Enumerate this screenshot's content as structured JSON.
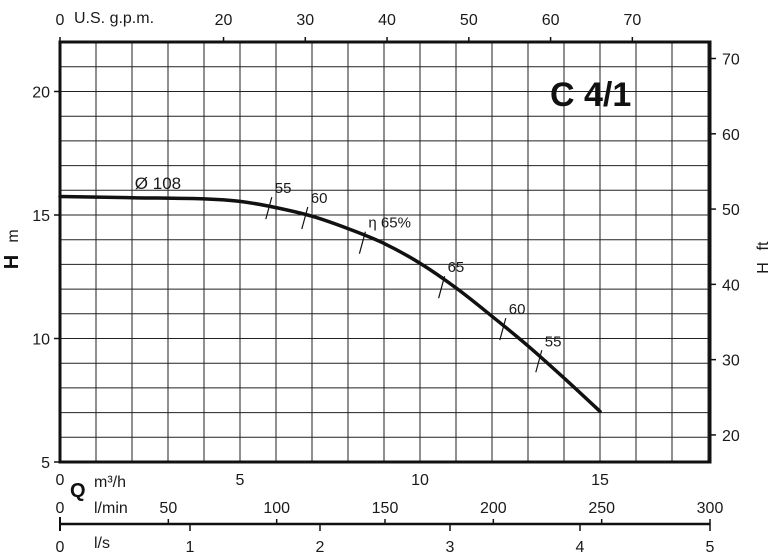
{
  "chart_data": {
    "type": "line",
    "title": "C 4/1",
    "grid": true,
    "x_primary": {
      "quantity": "Q",
      "unit": "m³/h",
      "range": [
        0,
        18
      ],
      "ticks": [
        "0",
        "5",
        "10",
        "15"
      ],
      "tick_values": [
        0,
        5,
        10,
        15
      ]
    },
    "x_top": {
      "unit": "U.S. g.p.m.",
      "ticks": [
        "0",
        "20",
        "30",
        "40",
        "50",
        "60",
        "70"
      ],
      "tick_values": [
        0,
        20,
        30,
        40,
        50,
        60,
        70
      ]
    },
    "x_lmin": {
      "unit": "l/min",
      "range": [
        0,
        300
      ],
      "ticks": [
        "0",
        "50",
        "100",
        "150",
        "200",
        "250",
        "300"
      ],
      "tick_values": [
        0,
        50,
        100,
        150,
        200,
        250,
        300
      ]
    },
    "x_ls": {
      "unit": "l/s",
      "range": [
        0,
        5
      ],
      "ticks": [
        "0",
        "1",
        "2",
        "3",
        "4",
        "5"
      ],
      "tick_values": [
        0,
        1,
        2,
        3,
        4,
        5
      ]
    },
    "y_left": {
      "quantity": "H",
      "unit": "m",
      "range": [
        5,
        22
      ],
      "ticks": [
        "5",
        "10",
        "15",
        "20"
      ],
      "tick_values": [
        5,
        10,
        15,
        20
      ]
    },
    "y_right": {
      "quantity": "H",
      "unit": "ft",
      "ticks": [
        "20",
        "30",
        "40",
        "50",
        "60",
        "70"
      ],
      "tick_values": [
        20,
        30,
        40,
        50,
        60,
        70
      ]
    },
    "series": [
      {
        "name": "Ø 108",
        "x": [
          0,
          2,
          4,
          5,
          6,
          7,
          8,
          9,
          10,
          11,
          12,
          13,
          14,
          15
        ],
        "y": [
          15.75,
          15.7,
          15.65,
          15.55,
          15.3,
          14.95,
          14.45,
          13.85,
          13.05,
          12.05,
          10.9,
          9.7,
          8.4,
          7.05
        ]
      }
    ],
    "efficiency_marks": [
      {
        "label": "55",
        "x": 5.8,
        "y": 15.4
      },
      {
        "label": "60",
        "x": 6.8,
        "y": 15.0
      },
      {
        "label": "η 65%",
        "x": 8.4,
        "y": 14.0
      },
      {
        "label": "65",
        "x": 10.6,
        "y": 12.2
      },
      {
        "label": "60",
        "x": 12.3,
        "y": 10.5
      },
      {
        "label": "55",
        "x": 13.3,
        "y": 9.2
      }
    ],
    "diameter_label": {
      "text": "Ø 108",
      "x": 3.3,
      "y": 16.3
    },
    "colors": {
      "curve": "#111111",
      "grid": "#222222",
      "frame": "#111111"
    }
  }
}
